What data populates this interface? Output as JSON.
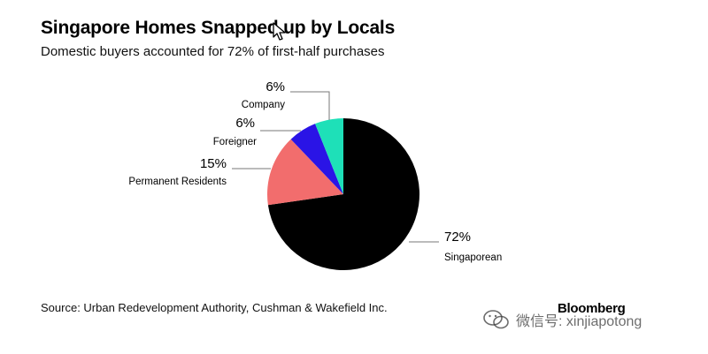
{
  "header": {
    "title": "Singapore Homes Snapped up by Locals",
    "subtitle": "Domestic buyers accounted for 72% of first-half purchases"
  },
  "footer": {
    "source": "Source: Urban Redevelopment Authority, Cushman & Wakefield Inc.",
    "brand": "Bloomberg",
    "watermark": "微信号: xinjiapotong"
  },
  "colors": {
    "Singaporean": "#000000",
    "Permanent Residents": "#f26d6d",
    "Foreigner": "#2a14e6",
    "Company": "#1ee0b8"
  },
  "chart_data": {
    "type": "pie",
    "title": "Singapore Homes Snapped up by Locals",
    "subtitle": "Domestic buyers accounted for 72% of first-half purchases",
    "slices": [
      {
        "label": "Singaporean",
        "value": 72,
        "value_label": "72%"
      },
      {
        "label": "Permanent Residents",
        "value": 15,
        "value_label": "15%"
      },
      {
        "label": "Foreigner",
        "value": 6,
        "value_label": "6%"
      },
      {
        "label": "Company",
        "value": 6,
        "value_label": "6%"
      }
    ],
    "start": "12 o'clock",
    "direction": "clockwise"
  }
}
